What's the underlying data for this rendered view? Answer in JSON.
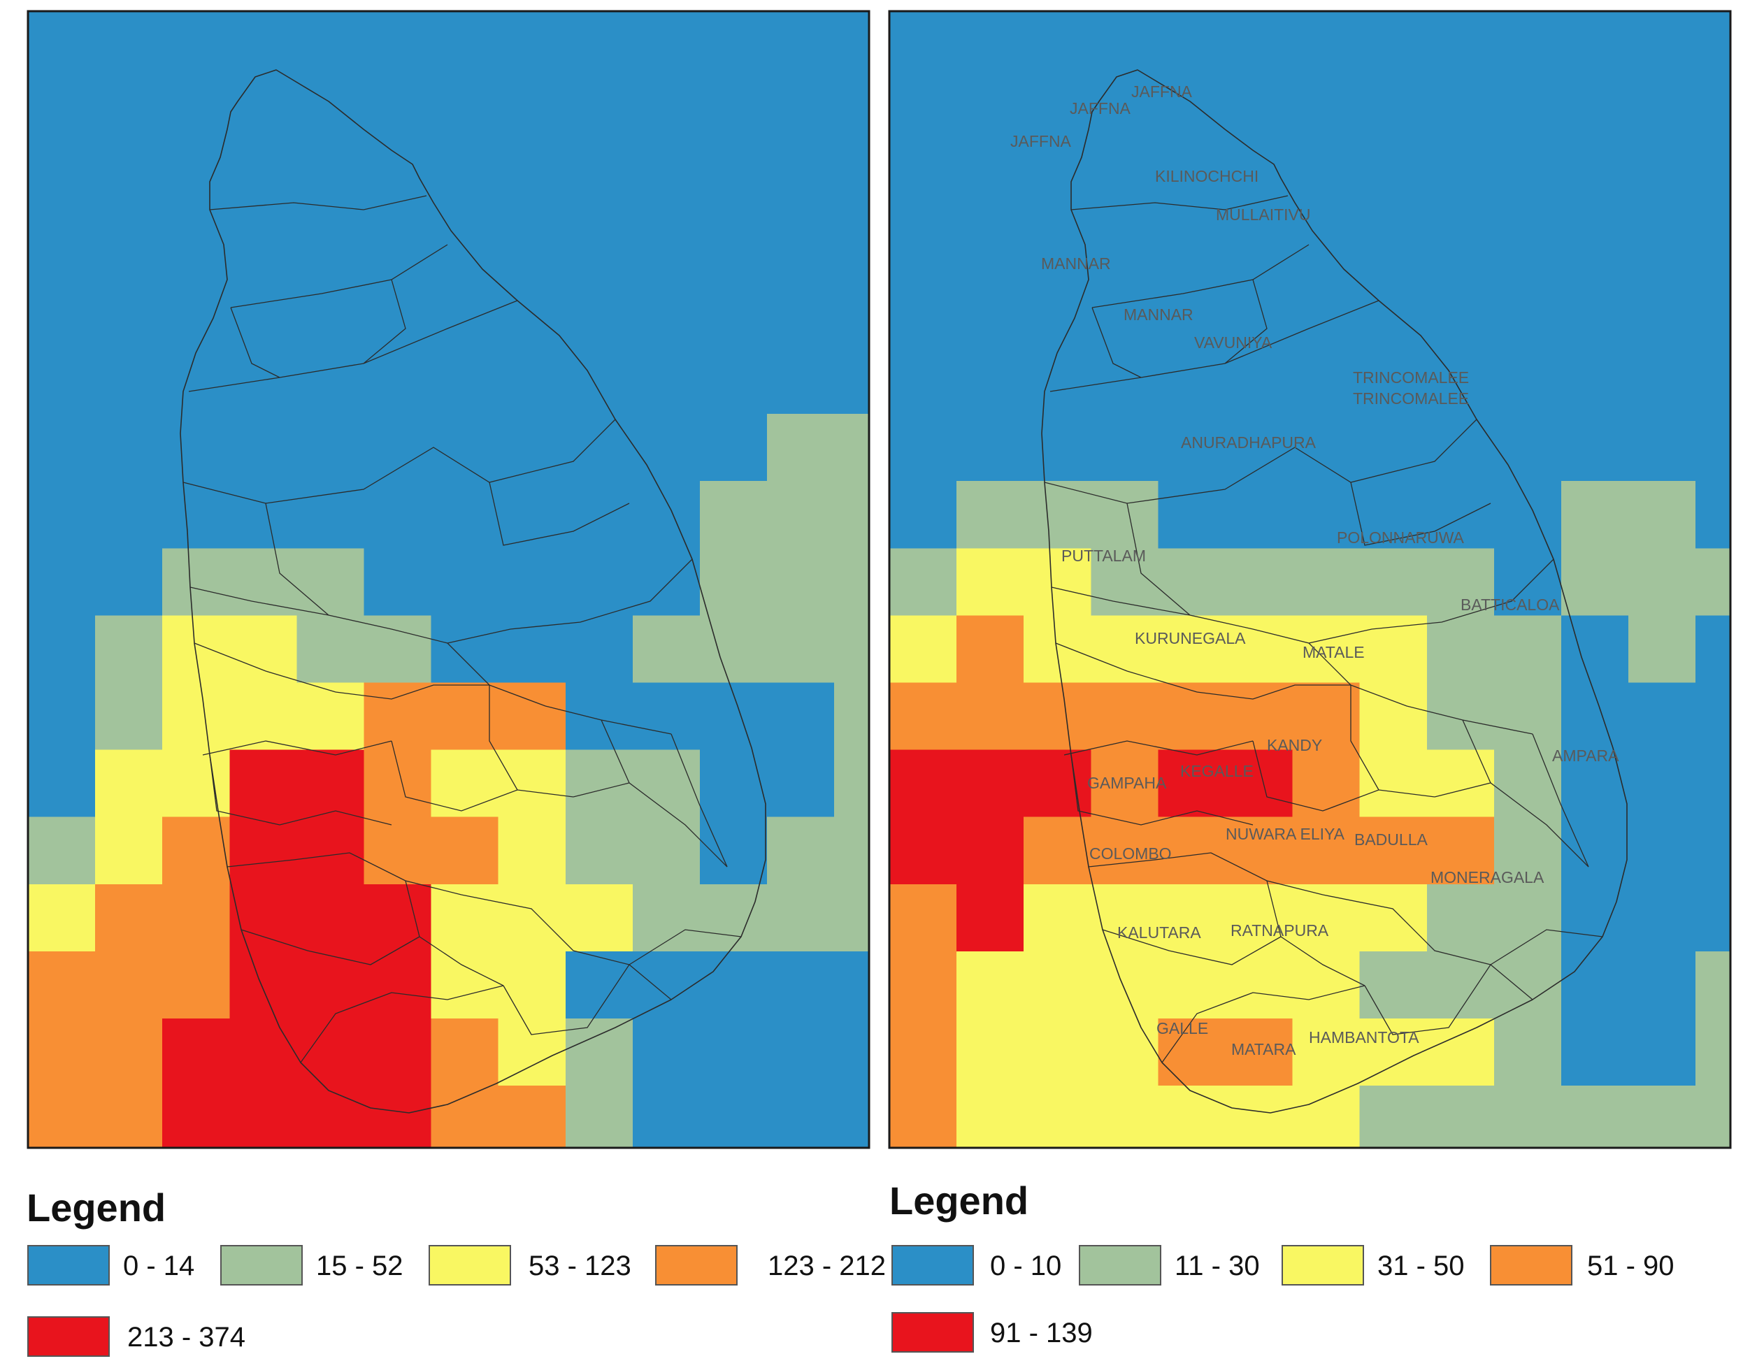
{
  "maps": [
    {
      "id": "left",
      "legend_title": "Legend",
      "classes": [
        {
          "range": "0 - 14",
          "color": "#2b8fc7"
        },
        {
          "range": "15 - 52",
          "color": "#a2c39c"
        },
        {
          "range": "53 - 123",
          "color": "#f9f762"
        },
        {
          "range": "123 - 212",
          "color": "#f88f34"
        },
        {
          "range": "213 - 374",
          "color": "#e8141d"
        }
      ],
      "labels": []
    },
    {
      "id": "right",
      "legend_title": "Legend",
      "classes": [
        {
          "range": "0 - 10",
          "color": "#2b8fc7"
        },
        {
          "range": "11 - 30",
          "color": "#a2c39c"
        },
        {
          "range": "31 - 50",
          "color": "#f9f762"
        },
        {
          "range": "51 - 90",
          "color": "#f88f34"
        },
        {
          "range": "91 - 139",
          "color": "#e8141d"
        }
      ],
      "labels": [
        "JAFFNA",
        "JAFFNA",
        "JAFFNA",
        "KILINOCHCHI",
        "MULLAITIVU",
        "MANNAR",
        "MANNAR",
        "VAVUNIYA",
        "TRINCOMALEE",
        "TRINCOMALEE",
        "ANURADHAPURA",
        "POLONNARUWA",
        "PUTTALAM",
        "BATTICALOA",
        "KURUNEGALA",
        "MATALE",
        "KANDY",
        "AMPARA",
        "GAMPAHA",
        "KEGALLE",
        "NUWARA ELIYA",
        "BADULLA",
        "COLOMBO",
        "MONERAGALA",
        "KALUTARA",
        "RATNAPURA",
        "GALLE",
        "MATARA",
        "HAMBANTOTA"
      ]
    }
  ]
}
